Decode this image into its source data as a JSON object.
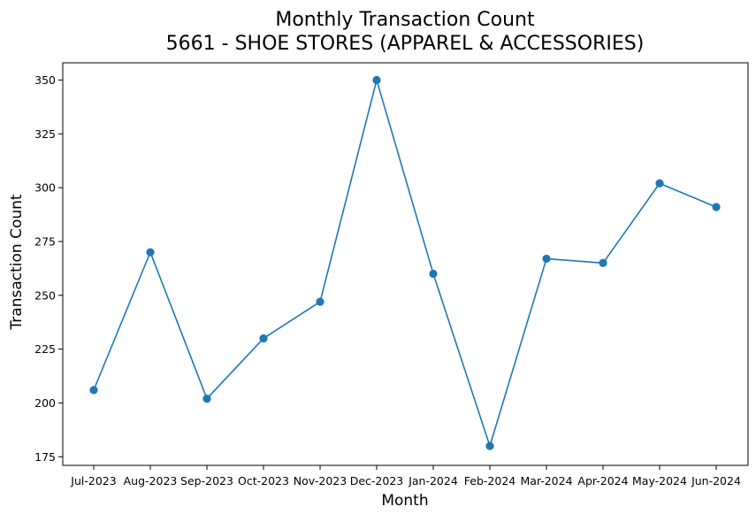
{
  "chart_data": {
    "type": "line",
    "title_line1": "Monthly Transaction Count",
    "title_line2": "5661 - SHOE STORES (APPAREL & ACCESSORIES)",
    "xlabel": "Month",
    "ylabel": "Transaction Count",
    "categories": [
      "Jul-2023",
      "Aug-2023",
      "Sep-2023",
      "Oct-2023",
      "Nov-2023",
      "Dec-2023",
      "Jan-2024",
      "Feb-2024",
      "Mar-2024",
      "Apr-2024",
      "May-2024",
      "Jun-2024"
    ],
    "series": [
      {
        "values": [
          206,
          270,
          202,
          230,
          247,
          350,
          260,
          180,
          267,
          265,
          302,
          291
        ],
        "color": "#1f77b4",
        "marker": "circle"
      }
    ],
    "ylim": [
      171,
      358
    ],
    "yticks": [
      175,
      200,
      225,
      250,
      275,
      300,
      325,
      350
    ],
    "grid": false,
    "legend": "none"
  }
}
